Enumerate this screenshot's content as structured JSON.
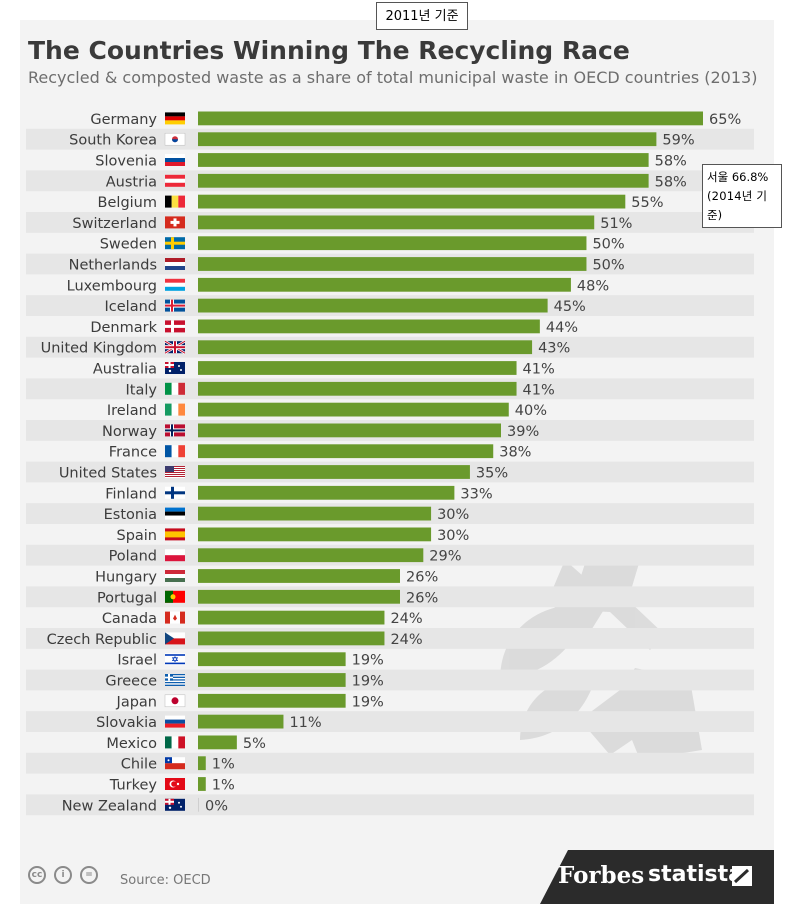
{
  "annotations": {
    "top_note": "2011년 기준",
    "side_note_line1": "서울 66.8%",
    "side_note_line2": "(2014년 기",
    "side_note_line3": "준)"
  },
  "footer": {
    "source": "Source: OECD",
    "cc_icons": [
      "cc",
      "i",
      "="
    ],
    "brand_forbes": "Forbes",
    "brand_statista": "statista"
  },
  "colors": {
    "bar": "#6a9a2c",
    "row_alt": "#e6e6e6",
    "background": "#f3f3f3",
    "footer_dark": "#2b2b2b",
    "label": "#3c3c3c"
  },
  "chart_data": {
    "type": "bar",
    "orientation": "horizontal",
    "title": "The Countries Winning The Recycling Race",
    "subtitle": "Recycled & composted waste as a share of total municipal waste in OECD countries (2013)",
    "categories": [
      "Germany",
      "South Korea",
      "Slovenia",
      "Austria",
      "Belgium",
      "Switzerland",
      "Sweden",
      "Netherlands",
      "Luxembourg",
      "Iceland",
      "Denmark",
      "United Kingdom",
      "Australia",
      "Italy",
      "Ireland",
      "Norway",
      "France",
      "United States",
      "Finland",
      "Estonia",
      "Spain",
      "Poland",
      "Hungary",
      "Portugal",
      "Canada",
      "Czech Republic",
      "Israel",
      "Greece",
      "Japan",
      "Slovakia",
      "Mexico",
      "Chile",
      "Turkey",
      "New Zealand"
    ],
    "values": [
      65,
      59,
      58,
      58,
      55,
      51,
      50,
      50,
      48,
      45,
      44,
      43,
      41,
      41,
      40,
      39,
      38,
      35,
      33,
      30,
      30,
      29,
      26,
      26,
      24,
      24,
      19,
      19,
      19,
      11,
      5,
      1,
      1,
      0
    ],
    "value_labels": [
      "65%",
      "59%",
      "58%",
      "58%",
      "55%",
      "51%",
      "50%",
      "50%",
      "48%",
      "45%",
      "44%",
      "43%",
      "41%",
      "41%",
      "40%",
      "39%",
      "38%",
      "35%",
      "33%",
      "30%",
      "30%",
      "29%",
      "26%",
      "26%",
      "24%",
      "24%",
      "19%",
      "19%",
      "19%",
      "11%",
      "5%",
      "1%",
      "1%",
      "0%"
    ],
    "flags": [
      "germany-flag",
      "south-korea-flag",
      "slovenia-flag",
      "austria-flag",
      "belgium-flag",
      "switzerland-flag",
      "sweden-flag",
      "netherlands-flag",
      "luxembourg-flag",
      "iceland-flag",
      "denmark-flag",
      "united-kingdom-flag",
      "australia-flag",
      "italy-flag",
      "ireland-flag",
      "norway-flag",
      "france-flag",
      "united-states-flag",
      "finland-flag",
      "estonia-flag",
      "spain-flag",
      "poland-flag",
      "hungary-flag",
      "portugal-flag",
      "canada-flag",
      "czech-republic-flag",
      "israel-flag",
      "greece-flag",
      "japan-flag",
      "slovakia-flag",
      "mexico-flag",
      "chile-flag",
      "turkey-flag",
      "new-zealand-flag"
    ],
    "xlim": [
      0,
      65
    ],
    "xlabel": "",
    "ylabel": "",
    "grid": false,
    "legend": "none"
  }
}
